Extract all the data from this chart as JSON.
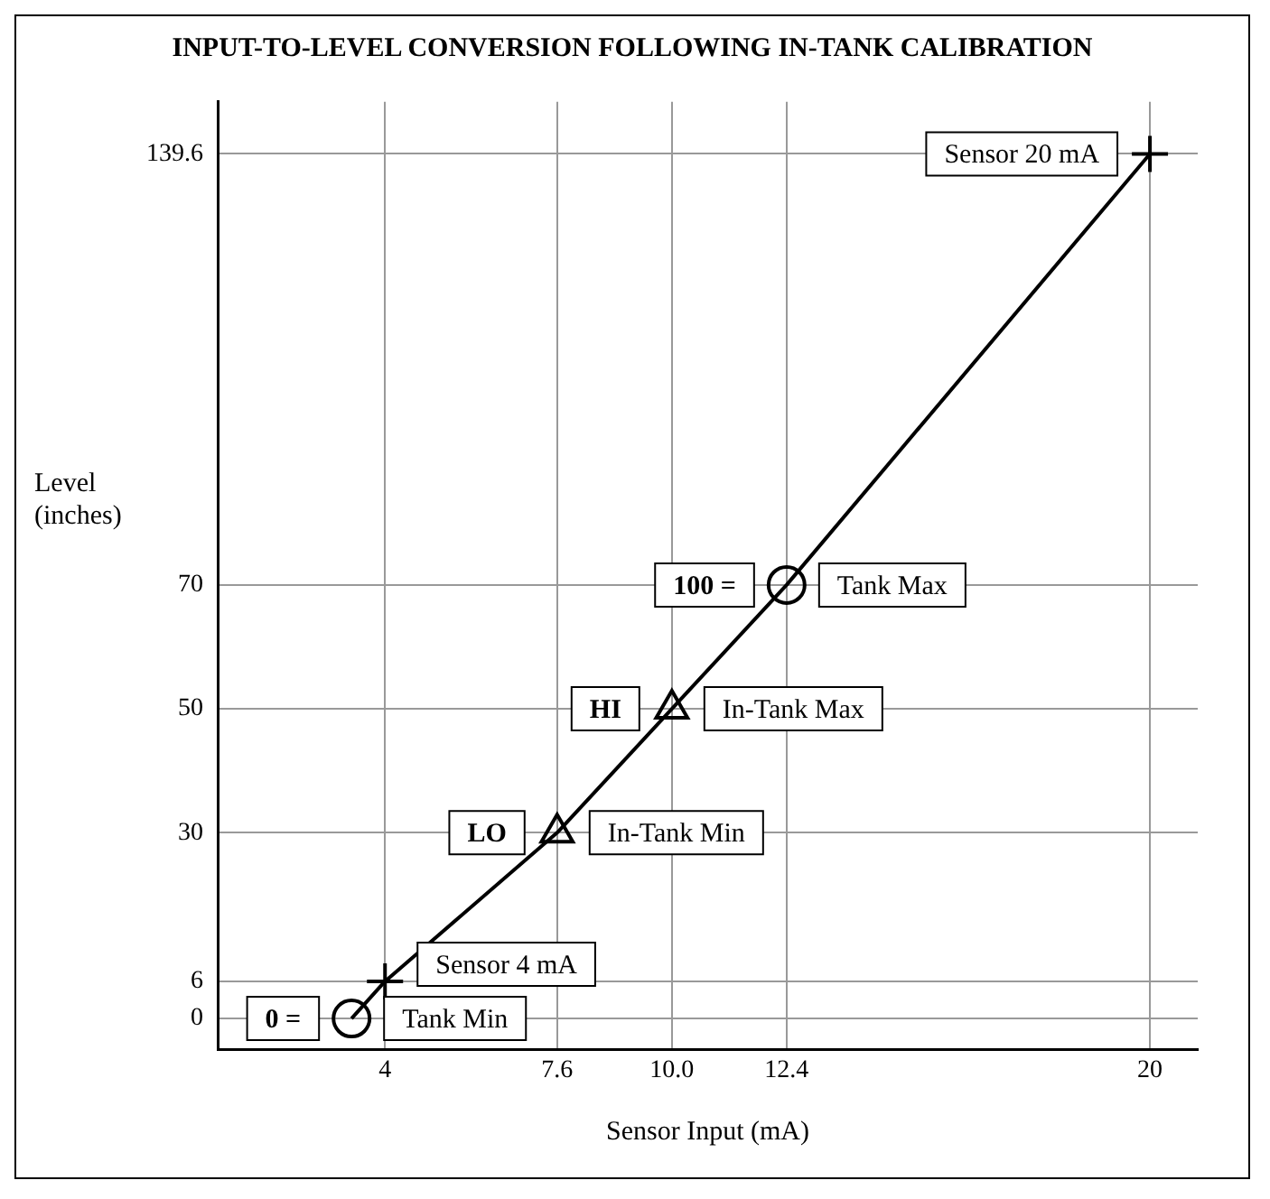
{
  "chart_data": {
    "type": "line",
    "title": "INPUT-TO-LEVEL CONVERSION FOLLOWING IN-TANK CALIBRATION",
    "xlabel": "Sensor Input (mA)",
    "ylabel": "Level\n(inches)",
    "x": [
      3.3,
      4,
      7.6,
      10,
      12.4,
      20
    ],
    "series": [
      {
        "type": "line",
        "color": "#000000",
        "marker": "none",
        "values": [
          0,
          6,
          30,
          50,
          70,
          139.6
        ]
      },
      {
        "type": "scatter",
        "color": "#000000",
        "marker": "circle",
        "x": [
          3.3,
          12.4
        ],
        "values": [
          0,
          70
        ]
      },
      {
        "type": "scatter",
        "color": "#000000",
        "marker": "cross",
        "x": [
          4,
          20
        ],
        "values": [
          6,
          139.6
        ]
      },
      {
        "type": "scatter",
        "color": "#000000",
        "marker": "triangle",
        "x": [
          7.6,
          10
        ],
        "values": [
          30,
          50
        ]
      }
    ],
    "xlim": [
      0.5,
      21
    ],
    "xticks": [
      4,
      {
        "value": 7.6,
        "label": "7.6"
      },
      {
        "value": 10,
        "label": "10.0"
      },
      {
        "value": 12.4,
        "label": "12.4"
      },
      20
    ],
    "ylim": [
      -5,
      148
    ],
    "yticks": [
      0,
      6,
      30,
      50,
      70,
      139.6
    ],
    "grid": true,
    "legend": false,
    "annotations": [
      {
        "text": "Sensor 20 mA",
        "x": 20,
        "y": 139.6
      },
      {
        "text": "100 =",
        "x": 12.4,
        "y": 70
      },
      {
        "text": "Tank Max",
        "x": 12.4,
        "y": 70
      },
      {
        "text": "HI",
        "x": 10,
        "y": 50
      },
      {
        "text": "In-Tank Max",
        "x": 10,
        "y": 50
      },
      {
        "text": "LO",
        "x": 7.6,
        "y": 30
      },
      {
        "text": "In-Tank Min",
        "x": 7.6,
        "y": 30
      },
      {
        "text": "Sensor 4 mA",
        "x": 4,
        "y": 6
      },
      {
        "text": "0 =",
        "x": 3.3,
        "y": 0
      },
      {
        "text": "Tank Min",
        "x": 3.3,
        "y": 0
      }
    ]
  }
}
